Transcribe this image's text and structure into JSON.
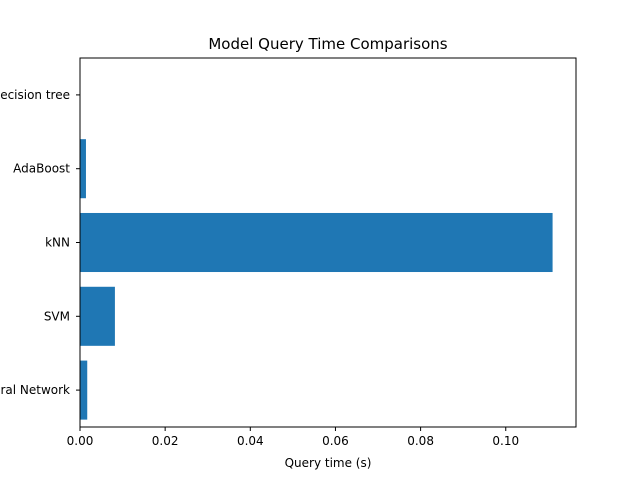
{
  "chart_data": {
    "type": "bar",
    "orientation": "horizontal",
    "title": "Model Query Time Comparisons",
    "xlabel": "Query time (s)",
    "ylabel": "",
    "categories": [
      "Decision tree",
      "AdaBoost",
      "kNN",
      "SVM",
      "Neural Network"
    ],
    "values": [
      0.0001,
      0.0014,
      0.111,
      0.0082,
      0.0017
    ],
    "xlim": [
      0,
      0.1165
    ],
    "xticks": [
      0.0,
      0.02,
      0.04,
      0.06,
      0.08,
      0.1
    ],
    "xtick_labels": [
      "0.00",
      "0.02",
      "0.04",
      "0.06",
      "0.08",
      "0.10"
    ],
    "grid": false,
    "bar_color": "#1f77b4"
  }
}
